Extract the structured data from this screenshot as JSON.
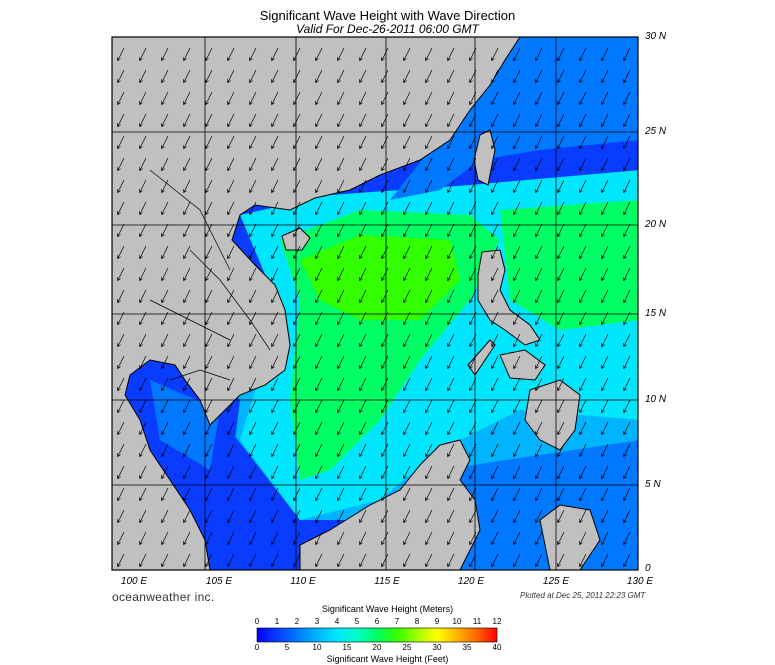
{
  "header": {
    "title": "Significant Wave Height with Wave Direction",
    "subtitle": "Valid For Dec-26-2011 06:00 GMT"
  },
  "axes": {
    "lat_labels": [
      "30 N",
      "25 N",
      "20 N",
      "15 N",
      "10 N",
      "5 N",
      "0"
    ],
    "lon_labels": [
      "100 E",
      "105 E",
      "110 E",
      "115 E",
      "120 E",
      "125 E",
      "130 E"
    ],
    "lat_range": [
      0,
      30
    ],
    "lon_range": [
      100,
      130
    ],
    "grid": "every 5 degrees"
  },
  "footer": {
    "brand": "oceanweather inc.",
    "plotted": "Plotted at Dec 25, 2011 22:23 GMT"
  },
  "colorbar": {
    "title_meters": "Significant Wave Height (Meters)",
    "title_feet": "Significant Wave Height (Feet)",
    "meter_ticks": [
      "0",
      "1",
      "2",
      "3",
      "4",
      "5",
      "6",
      "7",
      "8",
      "9",
      "10",
      "11",
      "12"
    ],
    "feet_ticks": [
      "0",
      "5",
      "10",
      "15",
      "20",
      "25",
      "30",
      "35",
      "40"
    ],
    "colors": [
      "#0000ff",
      "#0a3cff",
      "#0078ff",
      "#00b4ff",
      "#00e6ff",
      "#00ffc8",
      "#00ff64",
      "#32ff00",
      "#a0ff00",
      "#ffff00",
      "#ffb400",
      "#ff6400",
      "#ff0000"
    ]
  },
  "map_colors": {
    "land": "#c0c0c0",
    "coast": "#000000",
    "wave_direction": "southwest (from the northeast)",
    "arrow_color": "#000000"
  }
}
